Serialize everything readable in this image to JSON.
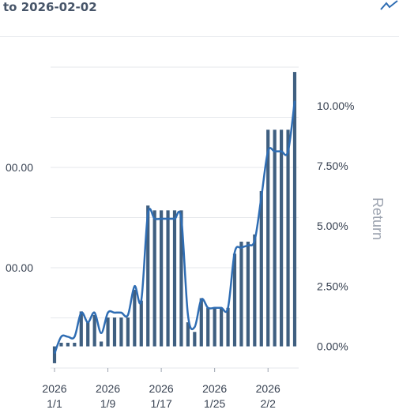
{
  "header": {
    "title": "to 2026-02-02",
    "corner_icon": "trend-line-icon"
  },
  "colors": {
    "bar": "#3f5f80",
    "line": "#2f6db3",
    "grid": "#e5e7eb",
    "tick_text": "#374151",
    "axis_title": "#9ca3af"
  },
  "chart_data": {
    "type": "bar",
    "grid": true,
    "x_ticks": [
      {
        "year": "2026",
        "date": "1/1"
      },
      {
        "year": "2026",
        "date": "1/9"
      },
      {
        "year": "2026",
        "date": "1/17"
      },
      {
        "year": "2026",
        "date": "1/25"
      },
      {
        "year": "2026",
        "date": "2/2"
      }
    ],
    "left_axis": {
      "tick_labels": [
        "00.00",
        "00.00"
      ],
      "tick_steps": [
        2,
        4
      ]
    },
    "right_axis": {
      "title": "Return",
      "tick_labels": [
        "0.00%",
        "2.50%",
        "5.00%",
        "7.50%",
        "10.00%"
      ],
      "tick_values": [
        0,
        2.5,
        5,
        7.5,
        10
      ],
      "ylim": [
        -0.9,
        11.6
      ]
    },
    "series": [
      {
        "type": "bar",
        "values": [
          -0.7,
          0.15,
          0.15,
          0.15,
          1.45,
          1.0,
          1.3,
          0.2,
          1.2,
          1.2,
          1.2,
          1.2,
          2.35,
          1.9,
          5.85,
          5.65,
          5.65,
          5.65,
          5.65,
          5.65,
          1.0,
          0.6,
          2.0,
          1.6,
          1.6,
          1.6,
          1.6,
          3.85,
          4.35,
          4.35,
          4.65,
          6.45,
          9.0,
          9.0,
          9.0,
          9.0,
          11.4
        ]
      },
      {
        "type": "line",
        "values": [
          -0.3,
          0.4,
          0.4,
          0.4,
          1.4,
          1.0,
          1.4,
          0.55,
          1.4,
          1.4,
          1.4,
          1.3,
          2.5,
          1.9,
          5.5,
          5.3,
          5.3,
          5.3,
          5.3,
          5.3,
          1.3,
          0.8,
          1.95,
          1.6,
          1.6,
          1.6,
          1.6,
          3.9,
          4.1,
          4.2,
          4.4,
          6.2,
          8.1,
          8.1,
          8.1,
          8.1,
          10.2
        ]
      }
    ]
  }
}
